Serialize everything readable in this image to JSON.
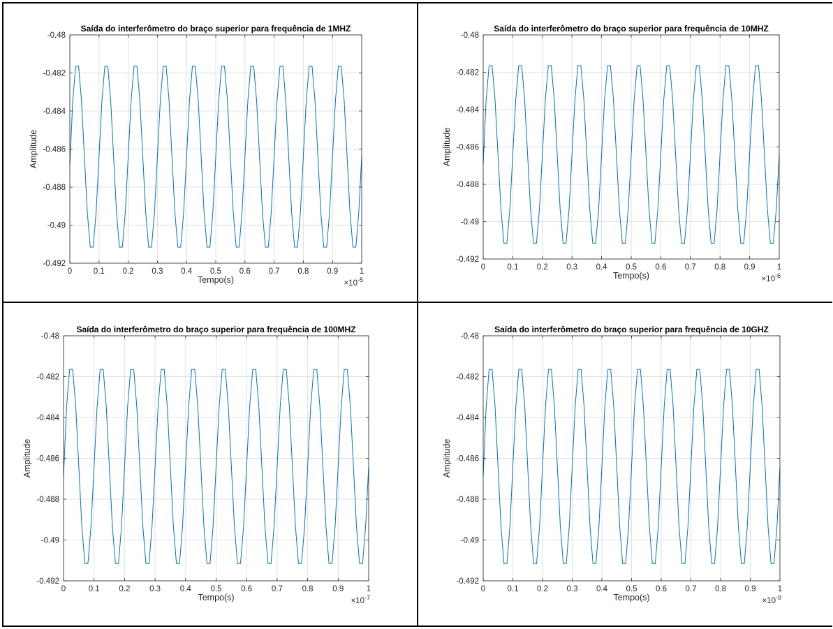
{
  "chart_data": [
    {
      "type": "line",
      "title": "Saída do interferômetro do braço superior para frequência de 1MHZ",
      "xlabel": "Tempo(s)",
      "ylabel": "Amplitude",
      "xlim": [
        0,
        1
      ],
      "ylim": [
        -0.492,
        -0.48
      ],
      "x_multiplier": "10^-5",
      "x_exponent_label": "-5",
      "xticks": [
        "0",
        "0.1",
        "0.2",
        "0.3",
        "0.4",
        "0.5",
        "0.6",
        "0.7",
        "0.8",
        "0.9",
        "1"
      ],
      "yticks": [
        "-0.48",
        "-0.482",
        "-0.484",
        "-0.486",
        "-0.488",
        "-0.49",
        "-0.492"
      ],
      "grid": true,
      "series": [
        {
          "signal": "sine",
          "color": "#0072BD",
          "offset": -0.4864,
          "amplitude": 0.005,
          "period": 0.1,
          "sample_step": 0.01,
          "x_start": 0,
          "x_end": 1,
          "initial_value": -0.4869
        }
      ]
    },
    {
      "type": "line",
      "title": "Saída do interferômetro do braço superior para frequência de 10MHZ",
      "xlabel": "Tempo(s)",
      "ylabel": "Amplitude",
      "xlim": [
        0,
        1
      ],
      "ylim": [
        -0.492,
        -0.48
      ],
      "x_multiplier": "10^-6",
      "x_exponent_label": "-6",
      "xticks": [
        "0",
        "0.1",
        "0.2",
        "0.3",
        "0.4",
        "0.5",
        "0.6",
        "0.7",
        "0.8",
        "0.9",
        "1"
      ],
      "yticks": [
        "-0.48",
        "-0.482",
        "-0.484",
        "-0.486",
        "-0.488",
        "-0.49",
        "-0.492"
      ],
      "grid": true,
      "series": [
        {
          "signal": "sine",
          "color": "#0072BD",
          "offset": -0.4864,
          "amplitude": 0.005,
          "period": 0.1,
          "sample_step": 0.01,
          "x_start": 0,
          "x_end": 1,
          "initial_value": -0.4869
        }
      ]
    },
    {
      "type": "line",
      "title": "Saída do interferômetro do braço superior para frequência de 100MHZ",
      "xlabel": "Tempo(s)",
      "ylabel": "Amplitude",
      "xlim": [
        0,
        1
      ],
      "ylim": [
        -0.492,
        -0.48
      ],
      "x_multiplier": "10^-7",
      "x_exponent_label": "-7",
      "xticks": [
        "0",
        "0.1",
        "0.2",
        "0.3",
        "0.4",
        "0.5",
        "0.6",
        "0.7",
        "0.8",
        "0.9",
        "1"
      ],
      "yticks": [
        "-0.48",
        "-0.482",
        "-0.484",
        "-0.486",
        "-0.488",
        "-0.49",
        "-0.492"
      ],
      "grid": true,
      "series": [
        {
          "signal": "sine",
          "color": "#0072BD",
          "offset": -0.4864,
          "amplitude": 0.005,
          "period": 0.1,
          "sample_step": 0.01,
          "x_start": 0,
          "x_end": 1,
          "initial_value": -0.4869
        }
      ]
    },
    {
      "type": "line",
      "title": "Saída do interferômetro do braço superior para frequência de 10GHZ",
      "xlabel": "Tempo(s)",
      "ylabel": "Amplitude",
      "xlim": [
        0,
        1
      ],
      "ylim": [
        -0.492,
        -0.48
      ],
      "x_multiplier": "10^-9",
      "x_exponent_label": "-9",
      "xticks": [
        "0",
        "0.1",
        "0.2",
        "0.3",
        "0.4",
        "0.5",
        "0.6",
        "0.7",
        "0.8",
        "0.9",
        "1"
      ],
      "yticks": [
        "-0.48",
        "-0.482",
        "-0.484",
        "-0.486",
        "-0.488",
        "-0.49",
        "-0.492"
      ],
      "grid": true,
      "series": [
        {
          "signal": "sine",
          "color": "#0072BD",
          "offset": -0.4864,
          "amplitude": 0.005,
          "period": 0.1,
          "sample_step": 0.01,
          "x_start": 0,
          "x_end": 1,
          "initial_value": -0.4869
        }
      ]
    }
  ]
}
